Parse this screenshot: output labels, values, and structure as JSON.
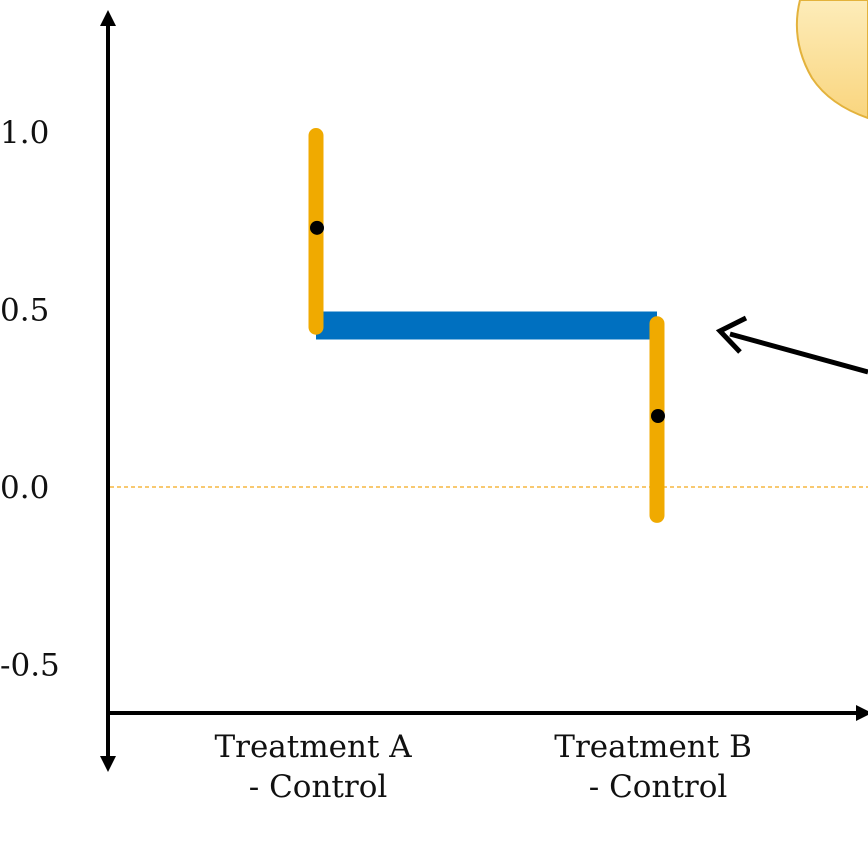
{
  "chart_data": {
    "type": "errorbar",
    "categories": [
      [
        "Treatment A",
        "- Control"
      ],
      [
        "Treatment B",
        "- Control"
      ]
    ],
    "points": [
      {
        "category": "Treatment A - Control",
        "estimate": 0.73,
        "lower": 0.45,
        "upper": 0.99
      },
      {
        "category": "Treatment B - Control",
        "estimate": 0.2,
        "lower": -0.08,
        "upper": 0.46
      }
    ],
    "overlap_band": {
      "from": 0.45,
      "to": 0.46
    },
    "yticks": [
      -0.5,
      0.0,
      0.5,
      1.0
    ],
    "ytick_labels": [
      "-0.5",
      "0.0",
      "0.5",
      "1.0"
    ],
    "ylim": [
      -0.62,
      1.32
    ],
    "reference_line": 0.0,
    "colors": {
      "interval": "#F0AA00",
      "band": "#0070C0",
      "point": "#000000",
      "reference": "#F5B740",
      "axis": "#000000",
      "bubble_fill": "#FCE3A0",
      "bubble_stroke": "#E3B23C"
    }
  }
}
